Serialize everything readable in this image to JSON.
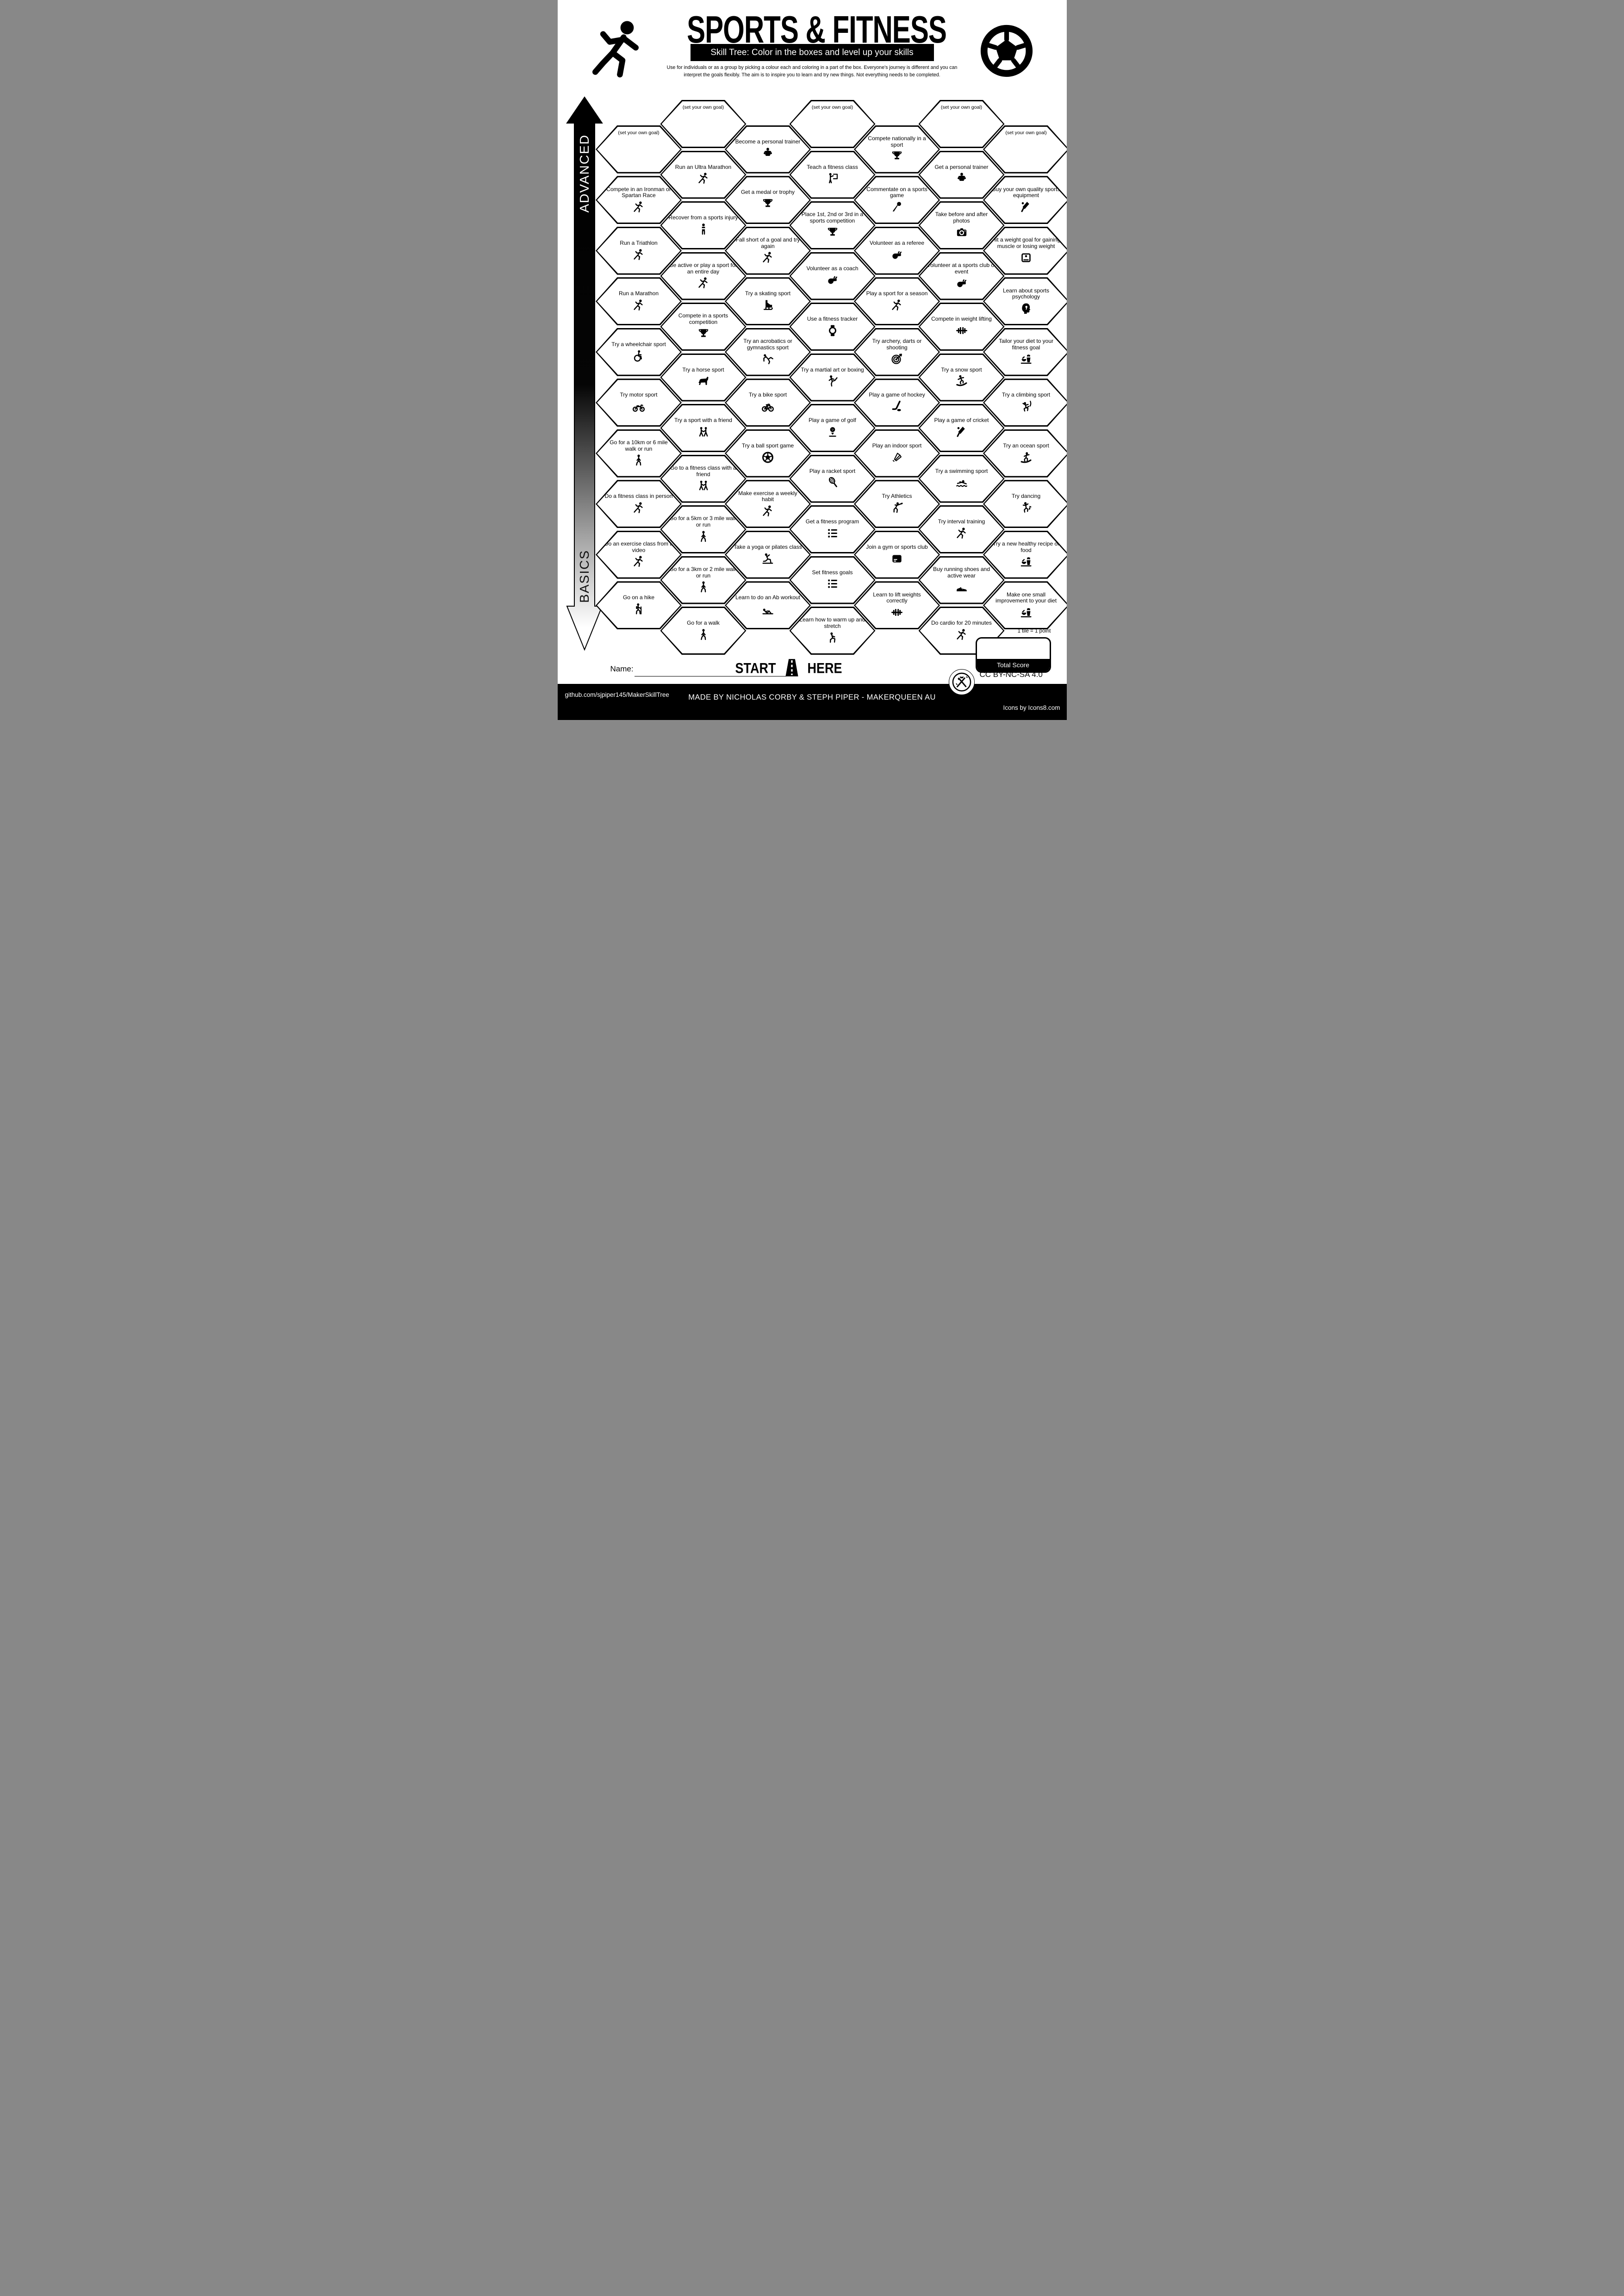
{
  "header": {
    "title": "SPORTS & FITNESS",
    "subtitle": "Skill Tree:  Color in the boxes and level up your skills",
    "description": [
      "Use for individuals or as a group by picking a colour each and coloring in a part of the box.  Everyone's journey is different and you can",
      "interpret the goals flexibly.  The aim is to inspire you to learn and try new things. Not everything needs to be completed."
    ]
  },
  "axis": {
    "top": "ADVANCED",
    "bottom": "BASICS"
  },
  "start_marker": {
    "start": "START",
    "here": "HERE"
  },
  "name_field": {
    "label": "Name:"
  },
  "score": {
    "note": "1 tile = 1 point",
    "label": "Total Score"
  },
  "footer": {
    "repo": "github.com/sjpiper145/MakerSkillTree",
    "credit": "MADE BY NICHOLAS CORBY & STEPH PIPER  -  MAKERQUEEN AU",
    "license": "CC BY-NC-SA 4.0",
    "icons_credit": "Icons by Icons8.com"
  },
  "columns": [
    {
      "tiles": [
        {
          "label": "(set your own goal)",
          "icon": null
        },
        {
          "label": "Compete in an Ironman or Spartan Race",
          "icon": "runner"
        },
        {
          "label": "Run a Triathlon",
          "icon": "runner"
        },
        {
          "label": "Run a Marathon",
          "icon": "runner"
        },
        {
          "label": "Try a wheelchair sport",
          "icon": "wheelchair"
        },
        {
          "label": "Try motor sport",
          "icon": "motorbike"
        },
        {
          "label": "Go for a 10km or 6 mile walk or run",
          "icon": "walker"
        },
        {
          "label": "Do a fitness class in person",
          "icon": "runner"
        },
        {
          "label": "Do an exercise class from a video",
          "icon": "runner"
        },
        {
          "label": "Go on a hike",
          "icon": "hiker"
        }
      ]
    },
    {
      "tiles": [
        {
          "label": "(set your own goal)",
          "icon": null
        },
        {
          "label": "Run an Ultra Marathon",
          "icon": "runner"
        },
        {
          "label": "Recover from a sports injury",
          "icon": "injured"
        },
        {
          "label": "Be active or play a sport for an entire day",
          "icon": "runner"
        },
        {
          "label": "Compete in a sports competition",
          "icon": "trophy"
        },
        {
          "label": "Try a horse sport",
          "icon": "horse"
        },
        {
          "label": "Try a sport with a friend",
          "icon": "two-people"
        },
        {
          "label": "Go to a fitness class with a friend",
          "icon": "two-people"
        },
        {
          "label": "Go for a 5km or 3 mile walk or run",
          "icon": "walker"
        },
        {
          "label": "Go for a 3km or 2 mile walk or run",
          "icon": "walker"
        },
        {
          "label": "Go for a walk",
          "icon": "walker"
        }
      ]
    },
    {
      "tiles": [
        {
          "label": "Become a personal trainer",
          "icon": "trainer"
        },
        {
          "label": "Get a medal or trophy",
          "icon": "trophy"
        },
        {
          "label": "Fall short of a goal and try again",
          "icon": "runner"
        },
        {
          "label": "Try a skating sport",
          "icon": "skate"
        },
        {
          "label": "Try an acrobatics or gymnastics sport",
          "icon": "gymnast"
        },
        {
          "label": "Try a bike sport",
          "icon": "bicycle"
        },
        {
          "label": "Try a ball sport game",
          "icon": "soccer"
        },
        {
          "label": "Make exercise a weekly habit",
          "icon": "runner"
        },
        {
          "label": "Take a yoga or pilates class",
          "icon": "yoga"
        },
        {
          "label": "Learn to do an Ab workout",
          "icon": "situp"
        }
      ]
    },
    {
      "tiles": [
        {
          "label": "(set your own goal)",
          "icon": null
        },
        {
          "label": "Teach a fitness class",
          "icon": "presenter"
        },
        {
          "label": "Place 1st, 2nd or 3rd in a sports competition",
          "icon": "trophy"
        },
        {
          "label": "Volunteer as a coach",
          "icon": "whistle"
        },
        {
          "label": "Use a fitness tracker",
          "icon": "watch"
        },
        {
          "label": "Try a martial art or boxing",
          "icon": "kick"
        },
        {
          "label": "Play a game of golf",
          "icon": "golf"
        },
        {
          "label": "Play a racket sport",
          "icon": "racket"
        },
        {
          "label": "Get a fitness program",
          "icon": "list"
        },
        {
          "label": "Set fitness goals",
          "icon": "list"
        },
        {
          "label": "Learn how to warm up and stretch",
          "icon": "stretch"
        }
      ]
    },
    {
      "tiles": [
        {
          "label": "Compete nationally in a sport",
          "icon": "trophy"
        },
        {
          "label": "Commentate on a sports game",
          "icon": "microphone"
        },
        {
          "label": "Volunteer as a referee",
          "icon": "whistle"
        },
        {
          "label": "Play a sport for a season",
          "icon": "runner"
        },
        {
          "label": "Try archery, darts or shooting",
          "icon": "target"
        },
        {
          "label": "Play a game of hockey",
          "icon": "hockey"
        },
        {
          "label": "Play an indoor sport",
          "icon": "shuttlecock"
        },
        {
          "label": "Try Athletics",
          "icon": "discus"
        },
        {
          "label": "Join a gym or sports club",
          "icon": "card"
        },
        {
          "label": "Learn to lift weights correctly",
          "icon": "barbell"
        }
      ]
    },
    {
      "tiles": [
        {
          "label": "(set your own goal)",
          "icon": null
        },
        {
          "label": "Get a personal trainer",
          "icon": "trainer"
        },
        {
          "label": "Take before and after photos",
          "icon": "camera"
        },
        {
          "label": "Volunteer at a sports club or event",
          "icon": "whistle"
        },
        {
          "label": "Compete in weight lifting",
          "icon": "dumbbell"
        },
        {
          "label": "Try a snow sport",
          "icon": "snowboard"
        },
        {
          "label": "Play a game of cricket",
          "icon": "cricket"
        },
        {
          "label": "Try a swimming sport",
          "icon": "swimmer"
        },
        {
          "label": "Try interval training",
          "icon": "runner"
        },
        {
          "label": "Buy running shoes and active wear",
          "icon": "shoe"
        },
        {
          "label": "Do cardio for 20 minutes",
          "icon": "runner"
        }
      ]
    },
    {
      "tiles": [
        {
          "label": "(set your own goal)",
          "icon": null
        },
        {
          "label": "Buy your own quality sports equipment",
          "icon": "cricket"
        },
        {
          "label": "Hit a weight goal for gaining muscle or losing weight",
          "icon": "scale"
        },
        {
          "label": "Learn about sports psychology",
          "icon": "head"
        },
        {
          "label": "Tailor your diet to your fitness goal",
          "icon": "diet"
        },
        {
          "label": "Try a climbing sport",
          "icon": "climber"
        },
        {
          "label": "Try an ocean sport",
          "icon": "surfer"
        },
        {
          "label": "Try dancing",
          "icon": "dancer"
        },
        {
          "label": "Try a new healthy recipe or food",
          "icon": "diet"
        },
        {
          "label": "Make one small improvement to your diet",
          "icon": "diet"
        }
      ]
    }
  ]
}
